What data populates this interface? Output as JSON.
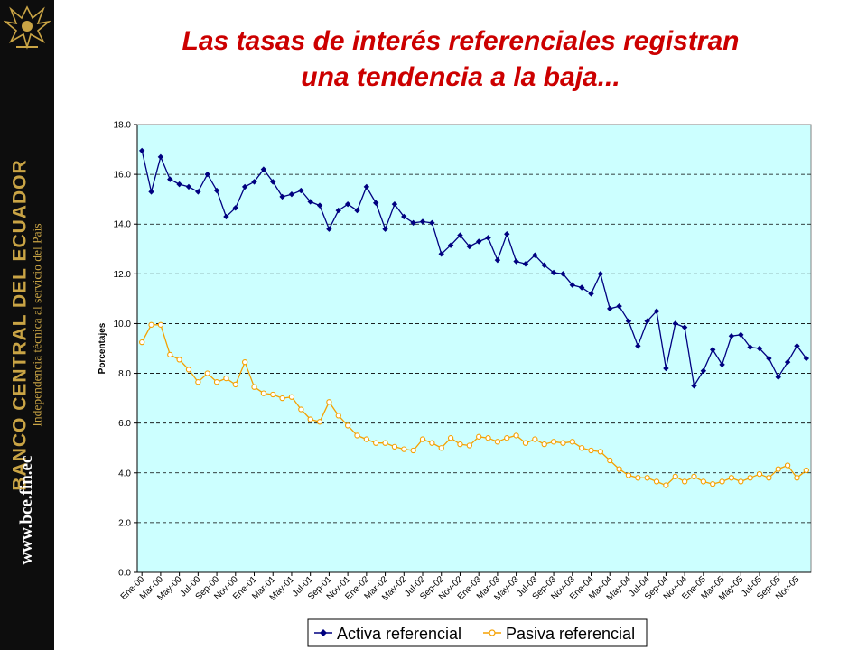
{
  "sidebar": {
    "bank_name": "BANCO CENTRAL DEL ECUADOR",
    "tagline": "Independencia técnica al servicio del País",
    "website": "www.bce.fin.ec",
    "logo_icon": "condor-crest-icon",
    "background_color": "#0d0d0d",
    "text_color": "#c9a445"
  },
  "slide": {
    "title_line1": "Las tasas de interés referenciales registran",
    "title_line2": "una tendencia a la baja...",
    "title_color": "#cc0000"
  },
  "chart_data": {
    "type": "line",
    "ylabel": "Porcentajes",
    "xlabel": "",
    "ylim": [
      0,
      18
    ],
    "yticks": [
      "0.0",
      "2.0",
      "4.0",
      "6.0",
      "8.0",
      "10.0",
      "12.0",
      "14.0",
      "16.0",
      "18.0"
    ],
    "grid": "horizontal-dashed",
    "plot_background": "#ccffff",
    "legend_position": "bottom",
    "x": [
      "Ene-00",
      "Feb-00",
      "Mar-00",
      "Abr-00",
      "May-00",
      "Jun-00",
      "Jul-00",
      "Ago-00",
      "Sep-00",
      "Oct-00",
      "Nov-00",
      "Dic-00",
      "Ene-01",
      "Feb-01",
      "Mar-01",
      "Abr-01",
      "May-01",
      "Jun-01",
      "Jul-01",
      "Ago-01",
      "Sep-01",
      "Oct-01",
      "Nov-01",
      "Dic-01",
      "Ene-02",
      "Feb-02",
      "Mar-02",
      "Abr-02",
      "May-02",
      "Jun-02",
      "Jul-02",
      "Ago-02",
      "Sep-02",
      "Oct-02",
      "Nov-02",
      "Dic-02",
      "Ene-03",
      "Feb-03",
      "Mar-03",
      "Abr-03",
      "May-03",
      "Jun-03",
      "Jul-03",
      "Ago-03",
      "Sep-03",
      "Oct-03",
      "Nov-03",
      "Dic-03",
      "Ene-04",
      "Feb-04",
      "Mar-04",
      "Abr-04",
      "May-04",
      "Jun-04",
      "Jul-04",
      "Ago-04",
      "Sep-04",
      "Oct-04",
      "Nov-04",
      "Dic-04",
      "Ene-05",
      "Feb-05",
      "Mar-05",
      "Abr-05",
      "May-05",
      "Jun-05",
      "Jul-05",
      "Ago-05",
      "Sep-05",
      "Oct-05",
      "Nov-05",
      "Dic-05"
    ],
    "x_tick_labels": [
      "Ene-00",
      "Mar-00",
      "May-00",
      "Jul-00",
      "Sep-00",
      "Nov-00",
      "Ene-01",
      "Mar-01",
      "May-01",
      "Jul-01",
      "Sep-01",
      "Nov-01",
      "Ene-02",
      "Mar-02",
      "May-02",
      "Jul-02",
      "Sep-02",
      "Nov-02",
      "Ene-03",
      "Mar-03",
      "May-03",
      "Jul-03",
      "Sep-03",
      "Nov-03",
      "Ene-04",
      "Mar-04",
      "May-04",
      "Jul-04",
      "Sep-04",
      "Nov-04",
      "Ene-05",
      "Mar-05",
      "May-05",
      "Jul-05",
      "Sep-05",
      "Nov-05"
    ],
    "series": [
      {
        "name": "Activa referencial",
        "color": "#000080",
        "marker": "diamond-filled",
        "values": [
          16.95,
          15.3,
          16.7,
          15.8,
          15.6,
          15.5,
          15.3,
          16.0,
          15.35,
          14.3,
          14.65,
          15.5,
          15.7,
          16.2,
          15.7,
          15.1,
          15.2,
          15.35,
          14.9,
          14.75,
          13.8,
          14.55,
          14.8,
          14.55,
          15.5,
          14.85,
          13.8,
          14.8,
          14.3,
          14.05,
          14.1,
          14.05,
          12.8,
          13.15,
          13.55,
          13.1,
          13.3,
          13.45,
          12.55,
          13.6,
          12.5,
          12.4,
          12.75,
          12.35,
          12.05,
          12.0,
          11.55,
          11.45,
          11.2,
          12.0,
          10.6,
          10.7,
          10.1,
          9.1,
          10.1,
          10.5,
          8.2,
          10.0,
          9.85,
          7.5,
          8.1,
          8.95,
          8.35,
          9.5,
          9.55,
          9.05,
          9.0,
          8.6,
          7.85,
          8.45,
          9.1,
          8.6
        ]
      },
      {
        "name": "Pasiva referencial",
        "color": "#f5a000",
        "marker": "circle-open",
        "values": [
          9.25,
          9.95,
          9.95,
          8.75,
          8.55,
          8.15,
          7.65,
          8.0,
          7.65,
          7.8,
          7.55,
          8.45,
          7.45,
          7.2,
          7.15,
          7.0,
          7.05,
          6.55,
          6.15,
          6.05,
          6.85,
          6.3,
          5.9,
          5.5,
          5.35,
          5.2,
          5.2,
          5.05,
          4.95,
          4.9,
          5.35,
          5.2,
          5.0,
          5.4,
          5.15,
          5.1,
          5.45,
          5.4,
          5.25,
          5.4,
          5.5,
          5.2,
          5.35,
          5.15,
          5.25,
          5.2,
          5.25,
          5.0,
          4.9,
          4.85,
          4.5,
          4.15,
          3.9,
          3.8,
          3.8,
          3.65,
          3.5,
          3.85,
          3.65,
          3.85,
          3.65,
          3.55,
          3.65,
          3.8,
          3.65,
          3.8,
          3.95,
          3.8,
          4.15,
          4.3,
          3.8,
          4.1
        ]
      }
    ]
  }
}
